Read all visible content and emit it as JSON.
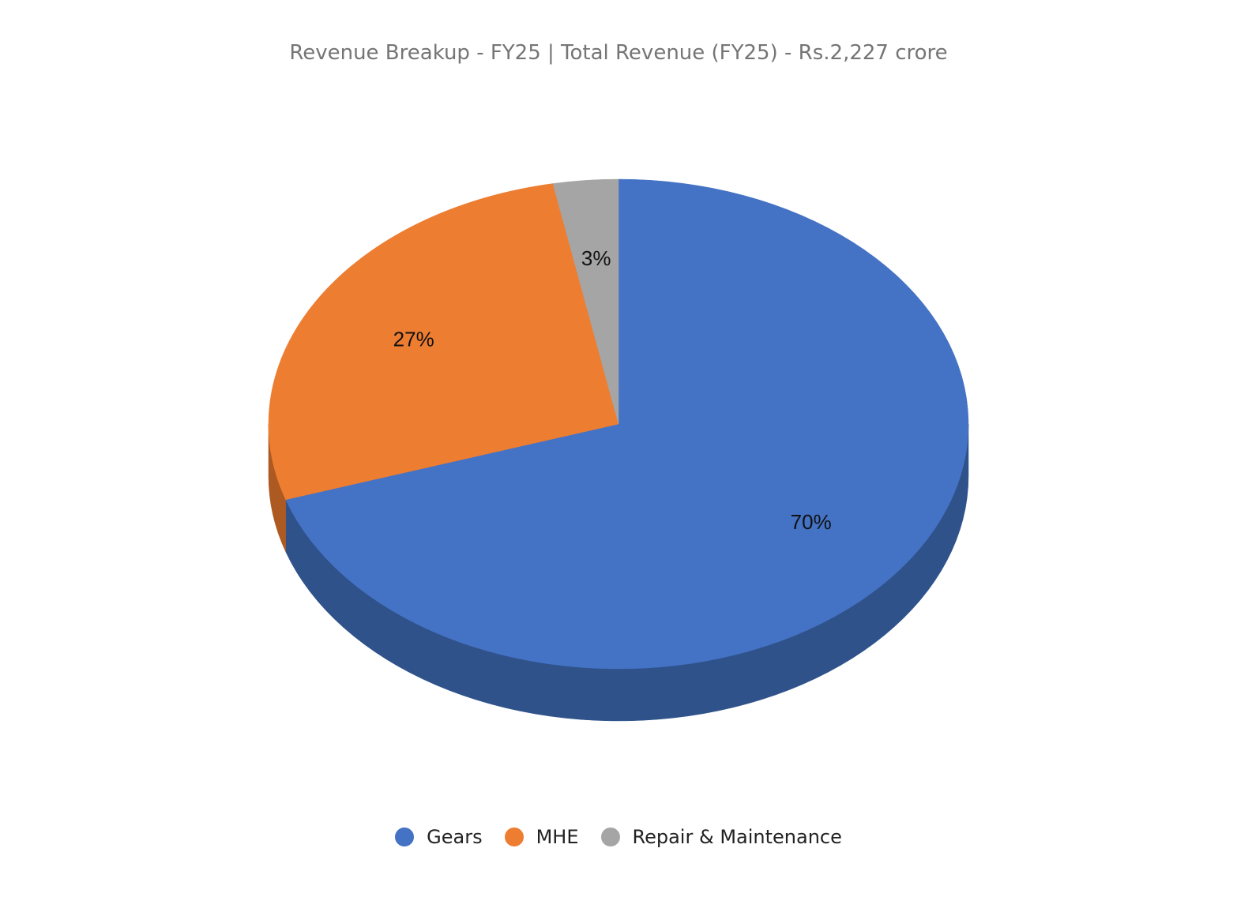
{
  "chart_data": {
    "type": "pie",
    "style": "3d",
    "title": "Revenue Breakup - FY25 | Total Revenue (FY25) - Rs.2,227 crore",
    "categories": [
      "Gears",
      "MHE",
      "Repair & Maintenance"
    ],
    "values": [
      70,
      27,
      3
    ],
    "data_labels": [
      "70%",
      "27%",
      "3%"
    ],
    "colors": [
      "#4472C4",
      "#ED7D31",
      "#A5A5A5"
    ],
    "side_colors": [
      "#2F528B",
      "#AD5A22",
      "#7A7A7A"
    ],
    "legend_position": "bottom",
    "start_angle_deg": 0,
    "direction": "clockwise"
  }
}
